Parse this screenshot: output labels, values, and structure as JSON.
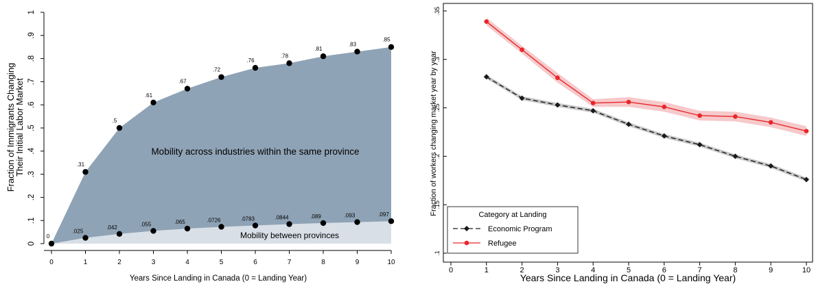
{
  "colors": {
    "outer_area": "#8fa3b6",
    "inner_area": "#d8dfe7",
    "economic": "#1a1a1a",
    "refugee": "#e8262a",
    "refugee_band": "#f6c9ca"
  },
  "chart_data": [
    {
      "type": "area",
      "xlabel": "Years Since Landing in Canada (0 = Landing Year)",
      "ylabel_line1": "Fraction of Immigrants Changing",
      "ylabel_line2": "Their Initial Labor Market",
      "xlim": [
        0,
        10
      ],
      "ylim": [
        0,
        1
      ],
      "x_ticks": [
        "0",
        "1",
        "2",
        "3",
        "4",
        "5",
        "6",
        "7",
        "8",
        "9",
        "10"
      ],
      "y_ticks": [
        "0",
        ".1",
        ".2",
        ".3",
        ".4",
        ".5",
        ".6",
        ".7",
        ".8",
        ".9",
        "1"
      ],
      "x": [
        0,
        1,
        2,
        3,
        4,
        5,
        6,
        7,
        8,
        9,
        10
      ],
      "series": [
        {
          "values": [
            0,
            0.31,
            0.5,
            0.61,
            0.67,
            0.72,
            0.76,
            0.78,
            0.81,
            0.83,
            0.85
          ],
          "labels": [
            "0",
            ".31",
            ".5",
            ".61",
            ".67",
            ".72",
            ".76",
            ".78",
            ".81",
            ".83",
            ".85"
          ]
        },
        {
          "values": [
            0,
            0.025,
            0.042,
            0.055,
            0.065,
            0.0726,
            0.0783,
            0.0844,
            0.089,
            0.093,
            0.097
          ],
          "labels": [
            "",
            ".025",
            ".042",
            ".055",
            ".065",
            ".0726",
            ".0783",
            ".0844",
            ".089",
            ".093",
            ".097"
          ]
        }
      ],
      "annotations": {
        "outer": "Mobility across industries within the same province",
        "inner": "Mobility between provinces"
      },
      "grid": false
    },
    {
      "type": "line",
      "xlabel": "Years Since Landing in Canada (0 = Landing Year)",
      "ylabel": "Fraction of workers changing market year by year",
      "xlim": [
        0,
        10
      ],
      "ylim": [
        0.1,
        0.35
      ],
      "x_ticks": [
        "0",
        "1",
        "2",
        "3",
        "4",
        "5",
        "6",
        "7",
        "8",
        "9",
        "10"
      ],
      "y_ticks": [
        ".1",
        ".15",
        ".2",
        ".25",
        ".3",
        ".35"
      ],
      "x": [
        1,
        2,
        3,
        4,
        5,
        6,
        7,
        8,
        9,
        10
      ],
      "series": [
        {
          "name": "Economic Program",
          "values": [
            0.282,
            0.26,
            0.253,
            0.247,
            0.233,
            0.221,
            0.212,
            0.2,
            0.19,
            0.176
          ],
          "lower": [
            0.28,
            0.258,
            0.251,
            0.245,
            0.231,
            0.219,
            0.21,
            0.198,
            0.188,
            0.174
          ],
          "upper": [
            0.284,
            0.262,
            0.255,
            0.249,
            0.235,
            0.223,
            0.214,
            0.202,
            0.192,
            0.178
          ]
        },
        {
          "name": "Refugee",
          "values": [
            0.339,
            0.31,
            0.281,
            0.255,
            0.256,
            0.251,
            0.242,
            0.241,
            0.235,
            0.226
          ],
          "lower": [
            0.335,
            0.306,
            0.276,
            0.251,
            0.251,
            0.246,
            0.237,
            0.236,
            0.23,
            0.221
          ],
          "upper": [
            0.343,
            0.314,
            0.286,
            0.259,
            0.261,
            0.256,
            0.247,
            0.246,
            0.24,
            0.231
          ]
        }
      ],
      "legend": {
        "title": "Category at Landing",
        "placement": "bottom-left"
      },
      "grid": false
    }
  ]
}
